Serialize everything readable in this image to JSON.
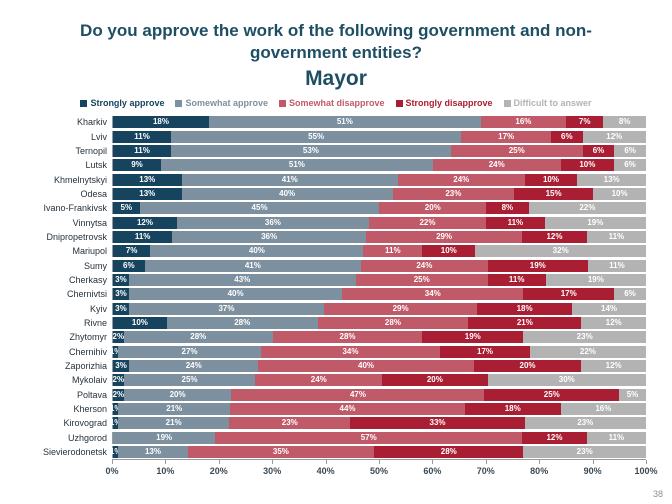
{
  "title": {
    "line1": "Do you approve the work of the following government and non-",
    "line2": "government entities?",
    "subtitle": "Mayor"
  },
  "page_number": "38",
  "chart_data": {
    "type": "bar",
    "stacked": true,
    "orientation": "horizontal",
    "title": "Do you approve the work of the following government and non-government entities? Mayor",
    "legend_position": "top",
    "xlim": [
      0,
      100
    ],
    "x_ticks": [
      "0%",
      "10%",
      "20%",
      "30%",
      "40%",
      "50%",
      "60%",
      "70%",
      "80%",
      "90%",
      "100%"
    ],
    "series_names": [
      "Strongly approve",
      "Somewhat approve",
      "Somewhat disapprove",
      "Strongly disapprove",
      "Difficult to answer"
    ],
    "colors": [
      "#16445E",
      "#7C90A0",
      "#C05A69",
      "#A91E32",
      "#B3B3B3"
    ],
    "categories": [
      "Kharkiv",
      "Lviv",
      "Ternopil",
      "Lutsk",
      "Khmelnytskyi",
      "Odesa",
      "Ivano-Frankivsk",
      "Vinnytsa",
      "Dnipropetrovsk",
      "Mariupol",
      "Sumy",
      "Cherkasy",
      "Chernivtsi",
      "Kyiv",
      "Rivne",
      "Zhytomyr",
      "Chernihiv",
      "Zaporizhia",
      "Mykolaiv",
      "Poltava",
      "Kherson",
      "Kirovograd",
      "Uzhgorod",
      "Sievierodonetsk"
    ],
    "rows": [
      [
        18,
        51,
        16,
        7,
        8
      ],
      [
        11,
        55,
        17,
        6,
        12
      ],
      [
        11,
        53,
        25,
        6,
        6
      ],
      [
        9,
        51,
        24,
        10,
        6
      ],
      [
        13,
        41,
        24,
        10,
        13
      ],
      [
        13,
        40,
        23,
        15,
        10
      ],
      [
        5,
        45,
        20,
        8,
        22
      ],
      [
        12,
        36,
        22,
        11,
        19
      ],
      [
        11,
        36,
        29,
        12,
        11
      ],
      [
        7,
        40,
        11,
        10,
        32
      ],
      [
        6,
        41,
        24,
        19,
        11
      ],
      [
        3,
        43,
        25,
        11,
        19
      ],
      [
        3,
        40,
        34,
        17,
        6
      ],
      [
        3,
        37,
        29,
        18,
        14
      ],
      [
        10,
        28,
        28,
        21,
        12
      ],
      [
        2,
        28,
        28,
        19,
        23
      ],
      [
        1,
        27,
        34,
        17,
        22
      ],
      [
        3,
        24,
        40,
        20,
        12
      ],
      [
        2,
        25,
        24,
        20,
        30
      ],
      [
        2,
        20,
        47,
        25,
        5
      ],
      [
        1,
        21,
        44,
        18,
        16
      ],
      [
        1,
        21,
        23,
        33,
        23
      ],
      [
        0,
        19,
        57,
        12,
        11
      ],
      [
        1,
        13,
        35,
        28,
        23
      ]
    ]
  }
}
